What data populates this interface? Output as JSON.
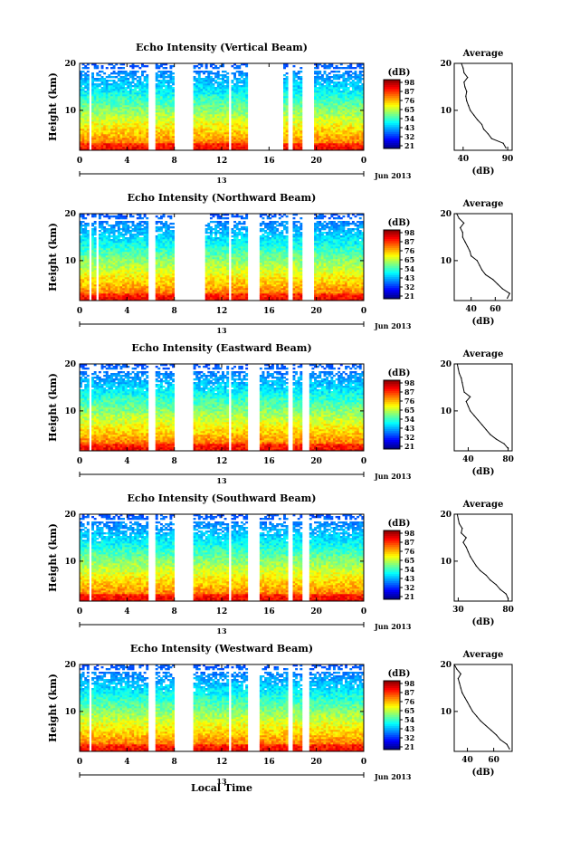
{
  "figure": {
    "x_axis_label": "Local Time",
    "date_label": "Jun 2013",
    "colorbar_unit": "(dB)",
    "y_axis_label": "Height (km)",
    "avg_title": "Average",
    "avg_xlabel": "(dB)"
  },
  "chart_data": [
    {
      "type": "heatmap",
      "title": "Echo Intensity (Vertical Beam)",
      "xlabel": "Local Time",
      "ylabel": "Height (km)",
      "x_ticks": [
        "0",
        "4",
        "8",
        "12",
        "16",
        "20",
        "0"
      ],
      "x_range_hours": [
        0,
        24
      ],
      "y_range_km": [
        1.5,
        20
      ],
      "y_ticks": [
        "20",
        "10"
      ],
      "day_marker": "13",
      "colorbar_ticks": [
        "98",
        "87",
        "76",
        "65",
        "54",
        "43",
        "32",
        "21"
      ],
      "colorbar_range_db": [
        21,
        98
      ],
      "data_gaps_hours": [
        [
          0.9,
          1.0
        ],
        [
          5.8,
          6.3
        ],
        [
          8.0,
          9.5
        ],
        [
          12.6,
          12.8
        ],
        [
          14.2,
          17.2
        ],
        [
          17.6,
          18.0
        ],
        [
          18.8,
          19.8
        ]
      ],
      "profile": {
        "x_ticks": [
          "40",
          "90"
        ],
        "xlim": [
          30,
          95
        ],
        "height_km": [
          2,
          3,
          4,
          5,
          6,
          7,
          8,
          9,
          10,
          11,
          12,
          13,
          14,
          15,
          16,
          17,
          18,
          19,
          20
        ],
        "intensity_db": [
          88,
          85,
          72,
          68,
          63,
          61,
          56,
          52,
          48,
          46,
          44,
          43,
          44,
          42,
          41,
          45,
          41,
          40,
          38
        ]
      }
    },
    {
      "type": "heatmap",
      "title": "Echo Intensity (Northward Beam)",
      "xlabel": "Local Time",
      "ylabel": "Height (km)",
      "x_ticks": [
        "0",
        "4",
        "8",
        "12",
        "16",
        "20",
        "0"
      ],
      "x_range_hours": [
        0,
        24
      ],
      "y_range_km": [
        1.5,
        20
      ],
      "y_ticks": [
        "20",
        "10"
      ],
      "day_marker": "13",
      "colorbar_ticks": [
        "98",
        "87",
        "76",
        "65",
        "54",
        "43",
        "32",
        "21"
      ],
      "colorbar_range_db": [
        21,
        98
      ],
      "data_gaps_hours": [
        [
          0.9,
          1.0
        ],
        [
          1.5,
          1.6
        ],
        [
          5.8,
          6.3
        ],
        [
          8.0,
          10.5
        ],
        [
          12.6,
          12.8
        ],
        [
          14.2,
          15.2
        ],
        [
          17.6,
          18.0
        ],
        [
          18.8,
          19.8
        ]
      ],
      "profile": {
        "x_ticks": [
          "40",
          "60"
        ],
        "xlim": [
          26,
          74
        ],
        "height_km": [
          2,
          3,
          4,
          5,
          6,
          7,
          8,
          9,
          10,
          11,
          12,
          13,
          14,
          15,
          16,
          17,
          18,
          19,
          20
        ],
        "intensity_db": [
          70,
          72,
          66,
          62,
          58,
          52,
          49,
          47,
          45,
          40,
          39,
          37,
          35,
          33,
          33,
          31,
          34,
          30,
          28
        ]
      }
    },
    {
      "type": "heatmap",
      "title": "Echo Intensity (Eastward Beam)",
      "xlabel": "Local Time",
      "ylabel": "Height (km)",
      "x_ticks": [
        "0",
        "4",
        "8",
        "12",
        "16",
        "20",
        "0"
      ],
      "x_range_hours": [
        0,
        24
      ],
      "y_range_km": [
        1.5,
        20
      ],
      "y_ticks": [
        "20",
        "10"
      ],
      "day_marker": "13",
      "colorbar_ticks": [
        "98",
        "87",
        "76",
        "65",
        "54",
        "43",
        "32",
        "21"
      ],
      "colorbar_range_db": [
        21,
        98
      ],
      "data_gaps_hours": [
        [
          0.9,
          1.0
        ],
        [
          5.8,
          6.3
        ],
        [
          8.0,
          9.5
        ],
        [
          12.6,
          12.8
        ],
        [
          14.2,
          15.2
        ],
        [
          17.6,
          18.0
        ],
        [
          18.8,
          19.3
        ]
      ],
      "profile": {
        "x_ticks": [
          "40",
          "80"
        ],
        "xlim": [
          26,
          84
        ],
        "height_km": [
          2,
          3,
          4,
          5,
          6,
          7,
          8,
          9,
          10,
          11,
          12,
          13,
          14,
          15,
          16,
          17,
          18,
          19,
          20
        ],
        "intensity_db": [
          80,
          76,
          68,
          62,
          58,
          54,
          50,
          46,
          42,
          40,
          38,
          42,
          36,
          35,
          34,
          33,
          31,
          30,
          29
        ]
      }
    },
    {
      "type": "heatmap",
      "title": "Echo Intensity (Southward Beam)",
      "xlabel": "Local Time",
      "ylabel": "Height (km)",
      "x_ticks": [
        "0",
        "4",
        "8",
        "12",
        "16",
        "20",
        "0"
      ],
      "x_range_hours": [
        0,
        24
      ],
      "y_range_km": [
        1.5,
        20
      ],
      "y_ticks": [
        "20",
        "10"
      ],
      "day_marker": "13",
      "colorbar_ticks": [
        "98",
        "87",
        "76",
        "65",
        "54",
        "43",
        "32",
        "21"
      ],
      "colorbar_range_db": [
        21,
        98
      ],
      "data_gaps_hours": [
        [
          0.9,
          1.0
        ],
        [
          5.8,
          6.3
        ],
        [
          8.0,
          9.5
        ],
        [
          12.6,
          12.8
        ],
        [
          14.2,
          15.2
        ],
        [
          17.6,
          18.0
        ],
        [
          18.8,
          19.3
        ]
      ],
      "profile": {
        "x_ticks": [
          "30",
          "80"
        ],
        "xlim": [
          26,
          84
        ],
        "height_km": [
          2,
          3,
          4,
          5,
          6,
          7,
          8,
          9,
          10,
          11,
          12,
          13,
          14,
          15,
          16,
          17,
          18,
          19,
          20
        ],
        "intensity_db": [
          80,
          78,
          72,
          68,
          62,
          58,
          52,
          48,
          45,
          42,
          40,
          38,
          35,
          38,
          33,
          34,
          31,
          30,
          29
        ]
      }
    },
    {
      "type": "heatmap",
      "title": "Echo Intensity (Westward Beam)",
      "xlabel": "Local Time",
      "ylabel": "Height (km)",
      "x_ticks": [
        "0",
        "4",
        "8",
        "12",
        "16",
        "20",
        "0"
      ],
      "x_range_hours": [
        0,
        24
      ],
      "y_range_km": [
        1.5,
        20
      ],
      "y_ticks": [
        "20",
        "10"
      ],
      "day_marker": "13",
      "colorbar_ticks": [
        "98",
        "87",
        "76",
        "65",
        "54",
        "43",
        "32",
        "21"
      ],
      "colorbar_range_db": [
        21,
        98
      ],
      "data_gaps_hours": [
        [
          0.9,
          1.0
        ],
        [
          5.8,
          6.3
        ],
        [
          8.0,
          9.5
        ],
        [
          12.6,
          12.8
        ],
        [
          14.2,
          15.2
        ],
        [
          17.6,
          18.0
        ],
        [
          18.8,
          19.3
        ]
      ],
      "profile": {
        "x_ticks": [
          "40",
          "60"
        ],
        "xlim": [
          30,
          74
        ],
        "height_km": [
          2,
          3,
          4,
          5,
          6,
          7,
          8,
          9,
          10,
          11,
          12,
          13,
          14,
          15,
          16,
          17,
          18,
          19,
          20
        ],
        "intensity_db": [
          72,
          70,
          65,
          62,
          58,
          54,
          50,
          47,
          44,
          42,
          40,
          38,
          36,
          35,
          34,
          33,
          35,
          32,
          30
        ]
      }
    }
  ]
}
